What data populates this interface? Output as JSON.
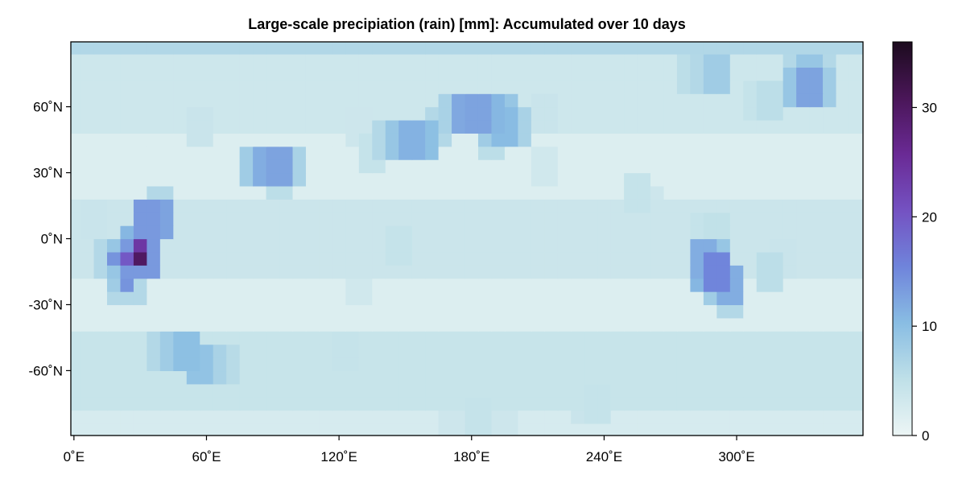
{
  "chart_data": {
    "type": "heatmap",
    "title": "Large-scale precipiation (rain) [mm]: Accumulated over 10 days",
    "xlabel": "",
    "ylabel": "",
    "x_ticks": [
      {
        "value": 0,
        "label": "0˚E"
      },
      {
        "value": 60,
        "label": "60˚E"
      },
      {
        "value": 120,
        "label": "120˚E"
      },
      {
        "value": 180,
        "label": "180˚E"
      },
      {
        "value": 240,
        "label": "240˚E"
      },
      {
        "value": 300,
        "label": "300˚E"
      }
    ],
    "y_ticks": [
      {
        "value": 60,
        "label": "60˚N"
      },
      {
        "value": 30,
        "label": "30˚N"
      },
      {
        "value": 0,
        "label": "0˚N"
      },
      {
        "value": -30,
        "label": "-30˚N"
      },
      {
        "value": -60,
        "label": "-60˚N"
      }
    ],
    "xlim": [
      -1.4,
      357.2
    ],
    "ylim": [
      -89.5,
      89.5
    ],
    "grid_step_lon": 6,
    "grid_step_lat": 6,
    "colorbar": {
      "range": [
        0,
        36
      ],
      "ticks": [
        {
          "value": 0,
          "label": "0"
        },
        {
          "value": 10,
          "label": "10"
        },
        {
          "value": 20,
          "label": "20"
        },
        {
          "value": 30,
          "label": "30"
        }
      ],
      "colors": [
        "#ecf5f5",
        "#bfe0e8",
        "#89bde3",
        "#6f84db",
        "#7452c2",
        "#6a2a95",
        "#4a1658",
        "#1c0b1e"
      ]
    },
    "base_field": [
      {
        "lat_min": 82,
        "lat_max": 90,
        "value": 6.5
      },
      {
        "lat_min": 50,
        "lat_max": 82,
        "value": 3.5
      },
      {
        "lat_min": 20,
        "lat_max": 50,
        "value": 1.8
      },
      {
        "lat_min": -20,
        "lat_max": 20,
        "value": 3.8
      },
      {
        "lat_min": -40,
        "lat_max": -20,
        "value": 1.8
      },
      {
        "lat_min": -75,
        "lat_max": -40,
        "value": 4.2
      },
      {
        "lat_min": -90,
        "lat_max": -75,
        "value": 2.5
      }
    ],
    "features": [
      {
        "lon": 33,
        "lat": 9,
        "value": 30
      },
      {
        "lon": 33,
        "lat": 3,
        "value": 24
      },
      {
        "lon": 30,
        "lat": -3,
        "value": 24
      },
      {
        "lon": 30,
        "lat": -9,
        "value": 30
      },
      {
        "lon": 24,
        "lat": -9,
        "value": 20
      },
      {
        "lon": 21,
        "lat": -15,
        "value": 18
      },
      {
        "lon": 24,
        "lat": -21,
        "value": 14
      },
      {
        "lon": 18,
        "lat": -9,
        "value": 14
      },
      {
        "lon": 39,
        "lat": 9,
        "value": 28
      },
      {
        "lon": 39,
        "lat": 15,
        "value": 14
      },
      {
        "lon": 27,
        "lat": -3,
        "value": 20
      },
      {
        "lon": 15,
        "lat": 3,
        "value": 8
      },
      {
        "lon": 9,
        "lat": 9,
        "value": 9
      },
      {
        "lon": 87,
        "lat": 33,
        "value": 26
      },
      {
        "lon": 93,
        "lat": 33,
        "value": 28
      },
      {
        "lon": 81,
        "lat": 33,
        "value": 18
      },
      {
        "lon": 99,
        "lat": 33,
        "value": 16
      },
      {
        "lon": 93,
        "lat": 27,
        "value": 12
      },
      {
        "lon": 147,
        "lat": 45,
        "value": 20
      },
      {
        "lon": 153,
        "lat": 45,
        "value": 25
      },
      {
        "lon": 159,
        "lat": 45,
        "value": 22
      },
      {
        "lon": 141,
        "lat": 45,
        "value": 14
      },
      {
        "lon": 135,
        "lat": 39,
        "value": 10
      },
      {
        "lon": 165,
        "lat": 51,
        "value": 14
      },
      {
        "lon": 177,
        "lat": 57,
        "value": 27
      },
      {
        "lon": 183,
        "lat": 57,
        "value": 28
      },
      {
        "lon": 189,
        "lat": 57,
        "value": 24
      },
      {
        "lon": 195,
        "lat": 51,
        "value": 23
      },
      {
        "lon": 189,
        "lat": 51,
        "value": 18
      },
      {
        "lon": 195,
        "lat": 57,
        "value": 20
      },
      {
        "lon": 201,
        "lat": 51,
        "value": 16
      },
      {
        "lon": 189,
        "lat": 45,
        "value": 12
      },
      {
        "lon": 171,
        "lat": 57,
        "value": 16
      },
      {
        "lon": 213,
        "lat": 57,
        "value": 9
      },
      {
        "lon": 285,
        "lat": -9,
        "value": 26
      },
      {
        "lon": 291,
        "lat": -15,
        "value": 34
      },
      {
        "lon": 285,
        "lat": -15,
        "value": 24
      },
      {
        "lon": 297,
        "lat": -21,
        "value": 26
      },
      {
        "lon": 291,
        "lat": -9,
        "value": 20
      },
      {
        "lon": 291,
        "lat": -21,
        "value": 18
      },
      {
        "lon": 297,
        "lat": -27,
        "value": 14
      },
      {
        "lon": 315,
        "lat": -15,
        "value": 12
      },
      {
        "lon": 321,
        "lat": -9,
        "value": 9
      },
      {
        "lon": 285,
        "lat": 3,
        "value": 10
      },
      {
        "lon": 291,
        "lat": 3,
        "value": 11
      },
      {
        "lon": 285,
        "lat": 75,
        "value": 14
      },
      {
        "lon": 291,
        "lat": 75,
        "value": 18
      },
      {
        "lon": 279,
        "lat": 75,
        "value": 12
      },
      {
        "lon": 333,
        "lat": 69,
        "value": 28
      },
      {
        "lon": 327,
        "lat": 69,
        "value": 20
      },
      {
        "lon": 339,
        "lat": 69,
        "value": 18
      },
      {
        "lon": 333,
        "lat": 75,
        "value": 20
      },
      {
        "lon": 327,
        "lat": 75,
        "value": 14
      },
      {
        "lon": 339,
        "lat": 75,
        "value": 14
      },
      {
        "lon": 315,
        "lat": 63,
        "value": 12
      },
      {
        "lon": 309,
        "lat": 63,
        "value": 10
      },
      {
        "lon": 45,
        "lat": -51,
        "value": 18
      },
      {
        "lon": 51,
        "lat": -51,
        "value": 22
      },
      {
        "lon": 57,
        "lat": -57,
        "value": 21
      },
      {
        "lon": 63,
        "lat": -57,
        "value": 16
      },
      {
        "lon": 69,
        "lat": -57,
        "value": 13
      },
      {
        "lon": 39,
        "lat": -51,
        "value": 14
      },
      {
        "lon": 75,
        "lat": -57,
        "value": 9
      },
      {
        "lon": 123,
        "lat": -51,
        "value": 10
      },
      {
        "lon": 129,
        "lat": -51,
        "value": 8
      },
      {
        "lon": 117,
        "lat": -51,
        "value": 8
      },
      {
        "lon": 147,
        "lat": -3,
        "value": 10
      },
      {
        "lon": 117,
        "lat": 3,
        "value": 7
      },
      {
        "lon": 129,
        "lat": -21,
        "value": 7
      },
      {
        "lon": 255,
        "lat": 21,
        "value": 10
      },
      {
        "lon": 261,
        "lat": 15,
        "value": 8
      },
      {
        "lon": 183,
        "lat": -81,
        "value": 10
      },
      {
        "lon": 171,
        "lat": -81,
        "value": 8
      },
      {
        "lon": 195,
        "lat": -81,
        "value": 8
      },
      {
        "lon": 237,
        "lat": -75,
        "value": 10
      },
      {
        "lon": 231,
        "lat": -75,
        "value": 9
      },
      {
        "lon": 57,
        "lat": 51,
        "value": 9
      },
      {
        "lon": 129,
        "lat": 51,
        "value": 8
      },
      {
        "lon": 213,
        "lat": 33,
        "value": 7
      },
      {
        "lon": 345,
        "lat": 9,
        "value": 7
      }
    ]
  }
}
